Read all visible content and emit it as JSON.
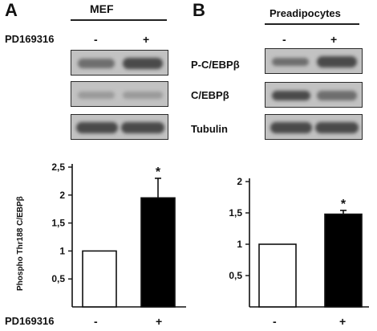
{
  "panel_a": {
    "letter": "A",
    "cell_type": "MEF",
    "treatment_label": "PD169316",
    "signs": [
      "-",
      "+"
    ]
  },
  "panel_b": {
    "letter": "B",
    "cell_type": "Preadipocytes",
    "signs": [
      "-",
      "+"
    ],
    "blot_labels": [
      "P-C/EBPβ",
      "C/EBPβ",
      "Tubulin"
    ]
  },
  "bottom": {
    "treatment_label": "PD169316",
    "signs_a": [
      "-",
      "+"
    ],
    "signs_b": [
      "-",
      "+"
    ]
  },
  "colors": {
    "ink": "#111111",
    "bar_control": "#ffffff",
    "bar_treated": "#000000",
    "blot_background": "#c2c2c2"
  },
  "chart_data": [
    {
      "type": "bar",
      "panel": "A",
      "ylabel": "Phospho Thr188 C/EBPβ",
      "categories": [
        "-",
        "+"
      ],
      "values": [
        1.0,
        1.95
      ],
      "error": [
        0,
        0.35
      ],
      "significance": [
        "",
        "*"
      ],
      "bar_colors": [
        "#ffffff",
        "#000000"
      ],
      "ylim": [
        0,
        2.5
      ],
      "yticks": [
        0.5,
        1,
        1.5,
        2,
        2.5
      ],
      "ytick_labels": [
        "0,5",
        "1",
        "1,5",
        "2",
        "2,5"
      ],
      "grid": false
    },
    {
      "type": "bar",
      "panel": "B",
      "ylabel": "",
      "categories": [
        "-",
        "+"
      ],
      "values": [
        1.0,
        1.48
      ],
      "error": [
        0,
        0.06
      ],
      "significance": [
        "",
        "*"
      ],
      "bar_colors": [
        "#ffffff",
        "#000000"
      ],
      "ylim": [
        0,
        2
      ],
      "yticks": [
        0.5,
        1,
        1.5,
        2
      ],
      "ytick_labels": [
        "0,5",
        "1",
        "1,5",
        "2"
      ],
      "grid": false
    }
  ]
}
